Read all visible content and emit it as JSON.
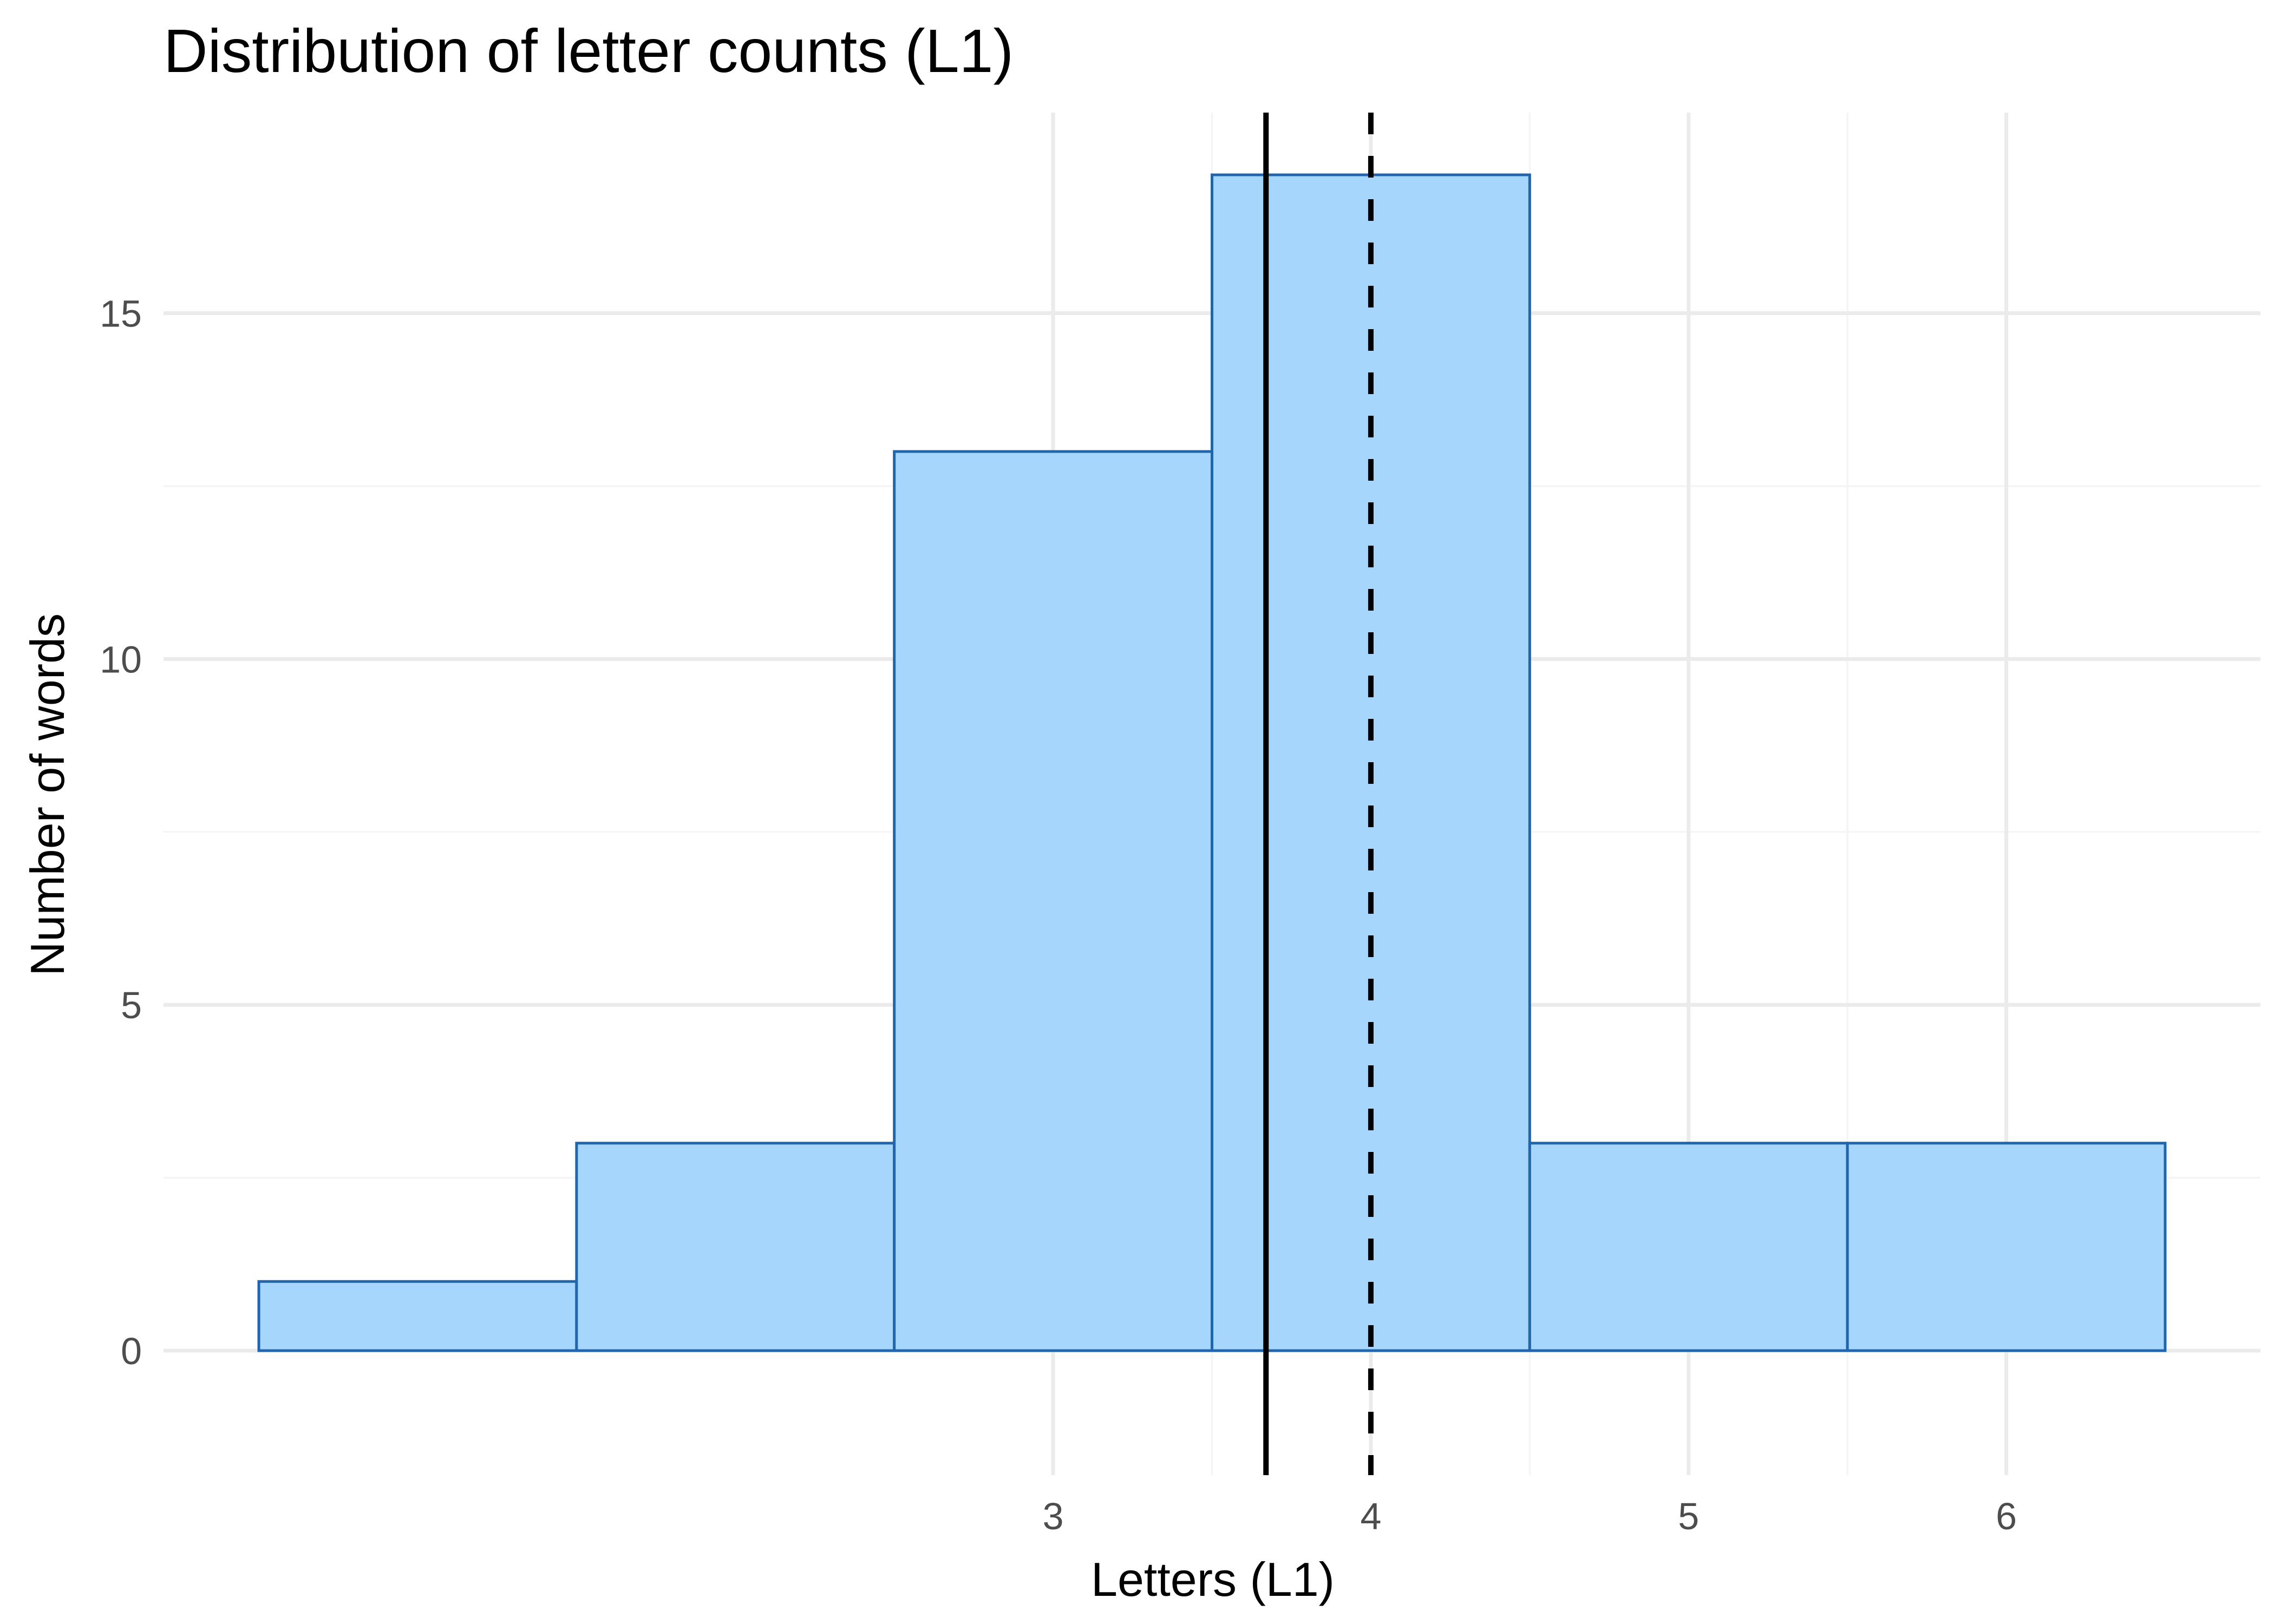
{
  "chart_data": {
    "type": "bar",
    "title": "Distribution of letter counts (L1)",
    "xlabel": "Letters (L1)",
    "ylabel": "Number of words",
    "bins": [
      {
        "x_start": 0.5,
        "x_end": 1.5,
        "count": 1
      },
      {
        "x_start": 1.5,
        "x_end": 2.5,
        "count": 3
      },
      {
        "x_start": 2.5,
        "x_end": 3.5,
        "count": 13
      },
      {
        "x_start": 3.5,
        "x_end": 4.5,
        "count": 17
      },
      {
        "x_start": 4.5,
        "x_end": 5.5,
        "count": 3
      },
      {
        "x_start": 5.5,
        "x_end": 6.5,
        "count": 3
      }
    ],
    "x_ticks": [
      3,
      4,
      5,
      6
    ],
    "y_ticks": [
      0,
      5,
      10,
      15
    ],
    "xlim": [
      0.2,
      6.8
    ],
    "ylim": [
      -1.8,
      17.9
    ],
    "reference_lines": [
      {
        "style": "solid",
        "x": 3.67
      },
      {
        "style": "dashed",
        "x": 4
      }
    ],
    "grid": true,
    "colors": {
      "bar_fill": "#a6d6fc",
      "bar_stroke": "#2166ac",
      "line": "#000000",
      "grid": "#ebebeb"
    }
  }
}
